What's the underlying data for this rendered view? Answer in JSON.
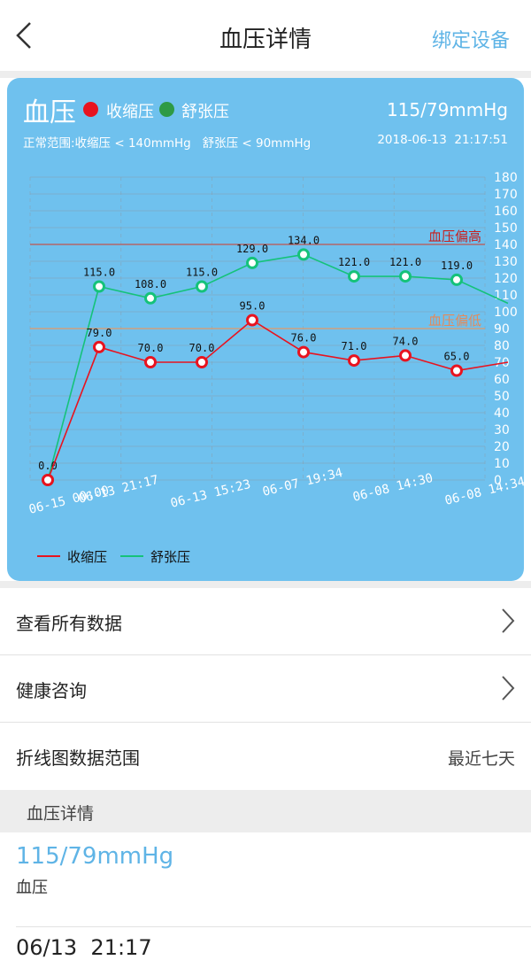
{
  "header": {
    "title": "血压详情",
    "bind_device": "绑定设备"
  },
  "card": {
    "title": "血压",
    "legend_systolic": "收缩压",
    "legend_diastolic": "舒张压",
    "current_value": "115/79mmHg",
    "normal_range": "正常范围:收缩压 < 140mmHg   舒张压 < 90mmHg",
    "timestamp": "2018-06-13  21:17:51",
    "colors": {
      "card_bg": "#6fc1ee",
      "systolic": "#e8131f",
      "diastolic": "#15c27a",
      "high_line": "#c0554f",
      "low_line": "#e09a6a"
    }
  },
  "chart_data": {
    "type": "line",
    "ylim": [
      0,
      180
    ],
    "yticks": [
      0,
      10,
      20,
      30,
      40,
      50,
      60,
      70,
      80,
      90,
      100,
      110,
      120,
      130,
      140,
      150,
      160,
      170,
      180
    ],
    "x_tick_labels": [
      "06-15 00:00",
      "06-13 21:17",
      "06-13 15:23",
      "06-07 19:34",
      "06-08 14:30",
      "06-08 14:34"
    ],
    "thresholds": [
      {
        "label": "血压偏高",
        "value": 140
      },
      {
        "label": "血压偏低",
        "value": 90
      }
    ],
    "series": [
      {
        "name": "收缩压",
        "values": [
          0.0,
          79.0,
          70.0,
          70.0,
          95.0,
          76.0,
          71.0,
          74.0,
          65.0,
          70
        ]
      },
      {
        "name": "舒张压",
        "values": [
          0.0,
          115.0,
          108.0,
          115.0,
          129.0,
          134.0,
          121.0,
          121.0,
          119.0,
          105
        ]
      }
    ],
    "point_labels": {
      "systolic": [
        "",
        "79.0",
        "70.0",
        "70.0",
        "95.0",
        "76.0",
        "71.0",
        "74.0",
        "65.0",
        ""
      ],
      "diastolic": [
        "0.0",
        "115.0",
        "108.0",
        "115.0",
        "129.0",
        "134.0",
        "121.0",
        "121.0",
        "119.0",
        ""
      ]
    },
    "legend": [
      "收缩压",
      "舒张压"
    ]
  },
  "rows": {
    "view_all": "查看所有数据",
    "health_consult": "健康咨询",
    "chart_range_label": "折线图数据范围",
    "chart_range_value": "最近七天"
  },
  "details": {
    "section_title": "血压详情",
    "value": "115/79mmHg",
    "name": "血压",
    "next_time": "06/13  21:17"
  }
}
